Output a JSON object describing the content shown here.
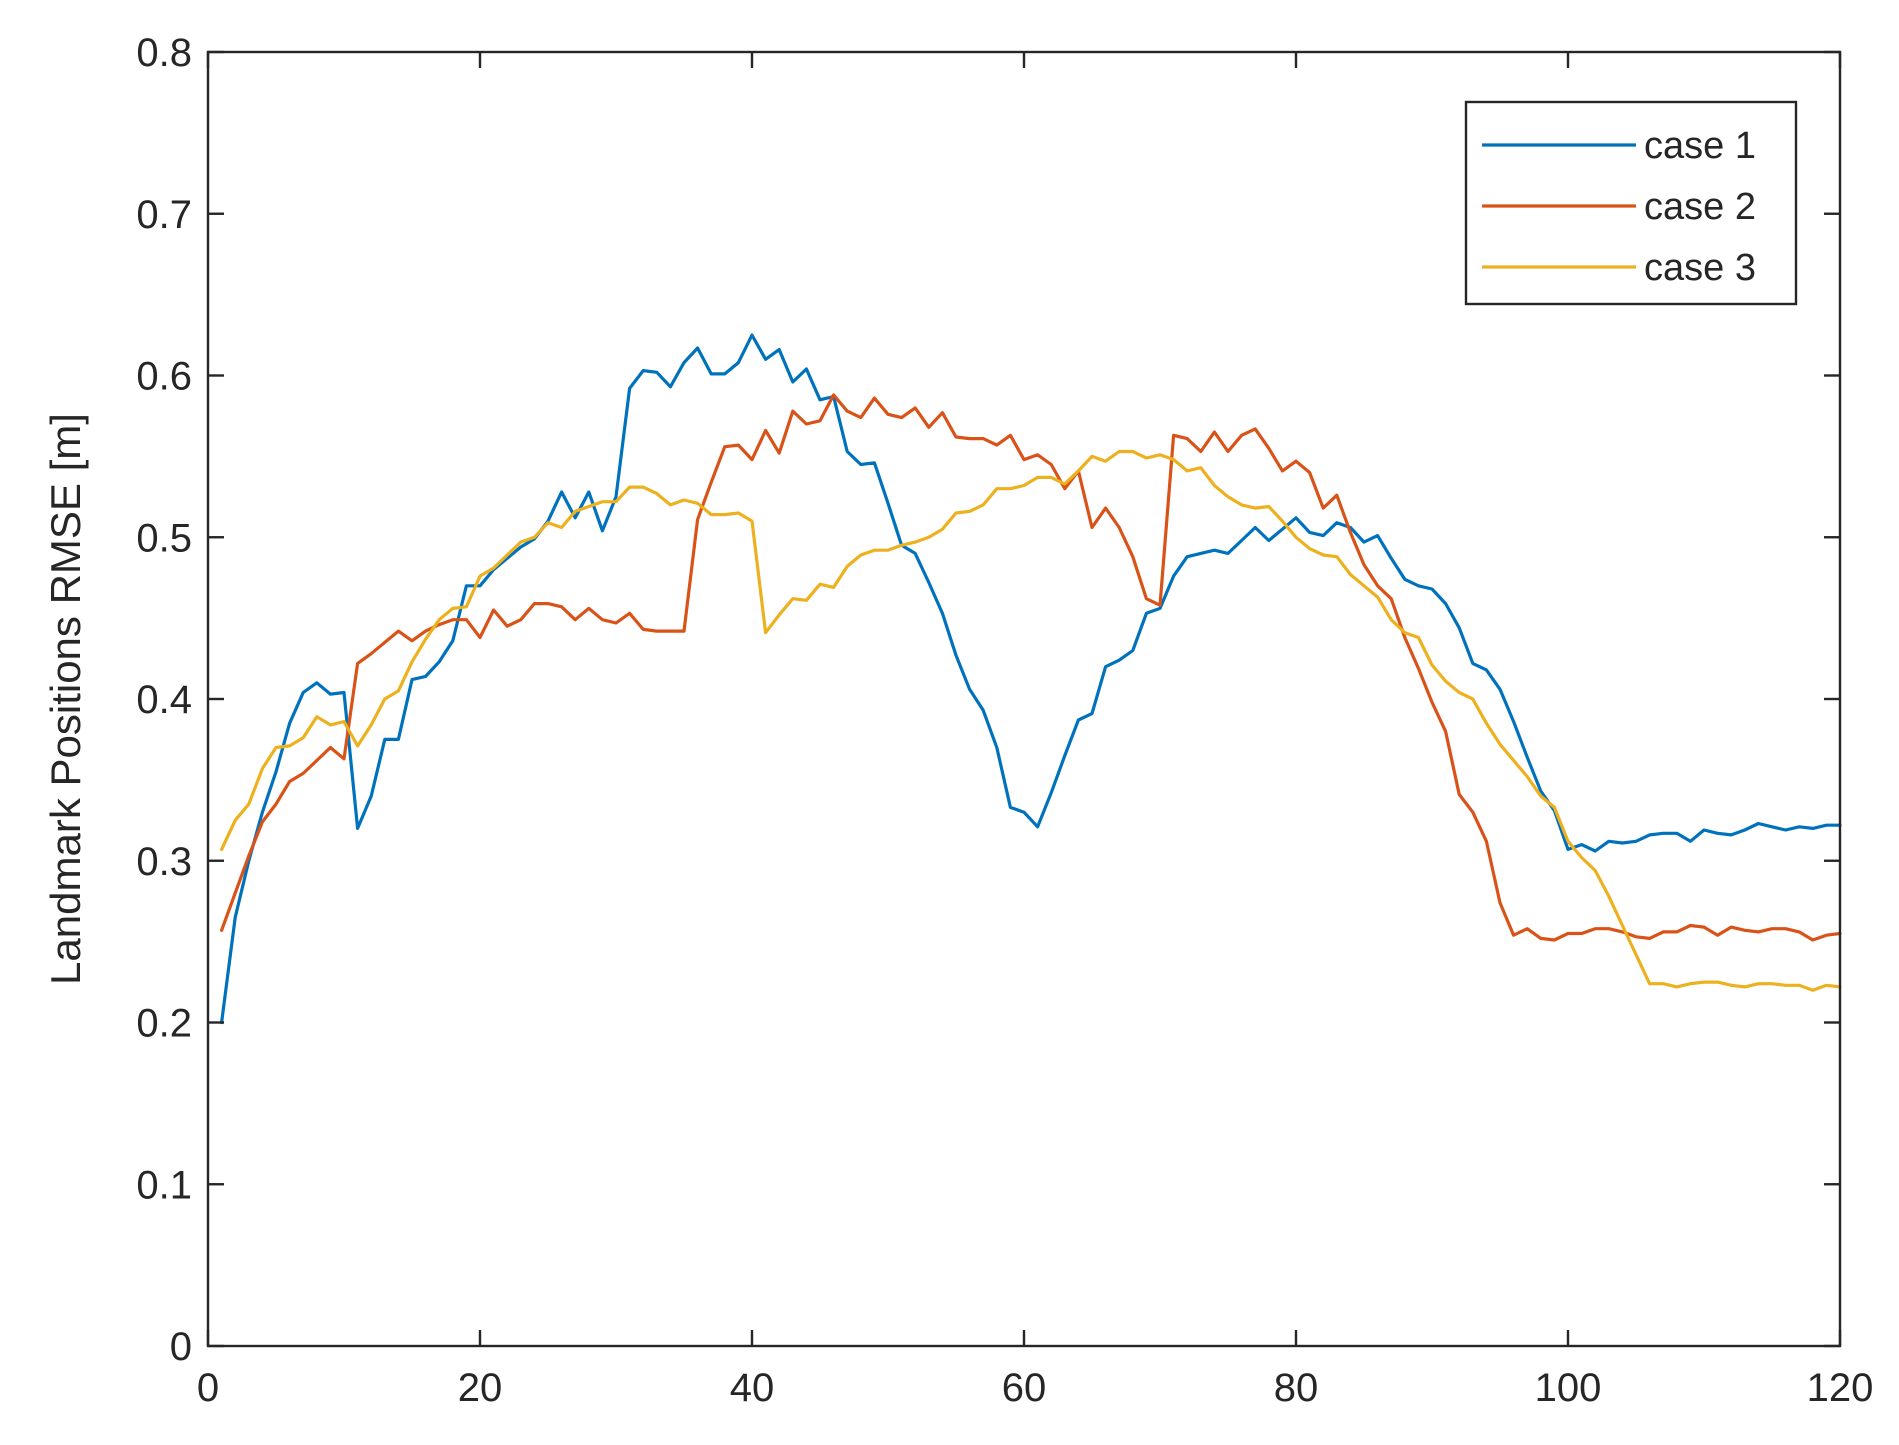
{
  "chart_data": {
    "type": "line",
    "title": "",
    "xlabel": "",
    "ylabel": "Landmark Positions RMSE [m]",
    "xlim": [
      0,
      120
    ],
    "ylim": [
      0,
      0.8
    ],
    "xticks": [
      "0",
      "20",
      "40",
      "60",
      "80",
      "100",
      "120"
    ],
    "yticks": [
      "0",
      "0.1",
      "0.2",
      "0.3",
      "0.4",
      "0.5",
      "0.6",
      "0.7",
      "0.8"
    ],
    "grid": false,
    "legend_position": "top-right",
    "colors": {
      "case 1": "#0072BD",
      "case 2": "#D95319",
      "case 3": "#EDB120",
      "axes": "#262626"
    },
    "x_start": 1,
    "series": [
      {
        "name": "case 1",
        "values": [
          0.2,
          0.265,
          0.3,
          0.33,
          0.355,
          0.385,
          0.404,
          0.41,
          0.403,
          0.404,
          0.32,
          0.34,
          0.375,
          0.375,
          0.412,
          0.414,
          0.423,
          0.436,
          0.47,
          0.47,
          0.48,
          0.487,
          0.494,
          0.499,
          0.51,
          0.528,
          0.512,
          0.528,
          0.504,
          0.525,
          0.592,
          0.603,
          0.602,
          0.593,
          0.608,
          0.617,
          0.601,
          0.601,
          0.608,
          0.625,
          0.61,
          0.616,
          0.596,
          0.604,
          0.585,
          0.587,
          0.553,
          0.545,
          0.546,
          0.521,
          0.495,
          0.49,
          0.472,
          0.453,
          0.427,
          0.406,
          0.393,
          0.37,
          0.333,
          0.33,
          0.321,
          0.342,
          0.365,
          0.387,
          0.391,
          0.42,
          0.424,
          0.43,
          0.453,
          0.456,
          0.476,
          0.488,
          0.49,
          0.492,
          0.49,
          0.498,
          0.506,
          0.498,
          0.505,
          0.512,
          0.503,
          0.501,
          0.509,
          0.506,
          0.497,
          0.501,
          0.487,
          0.474,
          0.47,
          0.468,
          0.459,
          0.444,
          0.422,
          0.418,
          0.406,
          0.386,
          0.364,
          0.343,
          0.331,
          0.307,
          0.31,
          0.306,
          0.312,
          0.311,
          0.312,
          0.316,
          0.317,
          0.317,
          0.312,
          0.319,
          0.317,
          0.316,
          0.319,
          0.323,
          0.321,
          0.319,
          0.321,
          0.32,
          0.322,
          0.322
        ]
      },
      {
        "name": "case 2",
        "values": [
          0.257,
          0.28,
          0.303,
          0.324,
          0.335,
          0.349,
          0.354,
          0.362,
          0.37,
          0.363,
          0.422,
          0.428,
          0.435,
          0.442,
          0.436,
          0.442,
          0.446,
          0.449,
          0.449,
          0.438,
          0.455,
          0.445,
          0.449,
          0.459,
          0.459,
          0.457,
          0.449,
          0.456,
          0.449,
          0.447,
          0.453,
          0.443,
          0.442,
          0.442,
          0.442,
          0.511,
          0.534,
          0.556,
          0.557,
          0.548,
          0.566,
          0.552,
          0.578,
          0.57,
          0.572,
          0.588,
          0.578,
          0.574,
          0.586,
          0.576,
          0.574,
          0.58,
          0.568,
          0.577,
          0.562,
          0.561,
          0.561,
          0.557,
          0.563,
          0.548,
          0.551,
          0.545,
          0.53,
          0.541,
          0.506,
          0.518,
          0.506,
          0.488,
          0.462,
          0.458,
          0.563,
          0.561,
          0.553,
          0.565,
          0.553,
          0.563,
          0.567,
          0.555,
          0.541,
          0.547,
          0.54,
          0.518,
          0.526,
          0.503,
          0.483,
          0.47,
          0.462,
          0.438,
          0.419,
          0.398,
          0.38,
          0.341,
          0.33,
          0.312,
          0.274,
          0.254,
          0.258,
          0.252,
          0.251,
          0.255,
          0.255,
          0.258,
          0.258,
          0.256,
          0.253,
          0.252,
          0.256,
          0.256,
          0.26,
          0.259,
          0.254,
          0.259,
          0.257,
          0.256,
          0.258,
          0.258,
          0.256,
          0.251,
          0.254,
          0.255
        ]
      },
      {
        "name": "case 3",
        "values": [
          0.307,
          0.325,
          0.335,
          0.357,
          0.37,
          0.371,
          0.376,
          0.389,
          0.384,
          0.386,
          0.371,
          0.384,
          0.4,
          0.405,
          0.423,
          0.437,
          0.449,
          0.456,
          0.457,
          0.476,
          0.481,
          0.489,
          0.497,
          0.5,
          0.509,
          0.506,
          0.516,
          0.519,
          0.522,
          0.522,
          0.531,
          0.531,
          0.527,
          0.52,
          0.523,
          0.521,
          0.514,
          0.514,
          0.515,
          0.51,
          0.441,
          0.452,
          0.462,
          0.461,
          0.471,
          0.469,
          0.482,
          0.489,
          0.492,
          0.492,
          0.495,
          0.497,
          0.5,
          0.505,
          0.515,
          0.516,
          0.52,
          0.53,
          0.53,
          0.532,
          0.537,
          0.537,
          0.533,
          0.541,
          0.55,
          0.547,
          0.553,
          0.553,
          0.549,
          0.551,
          0.548,
          0.541,
          0.543,
          0.532,
          0.525,
          0.52,
          0.518,
          0.519,
          0.51,
          0.5,
          0.493,
          0.489,
          0.488,
          0.477,
          0.47,
          0.463,
          0.449,
          0.441,
          0.438,
          0.421,
          0.411,
          0.404,
          0.4,
          0.385,
          0.372,
          0.362,
          0.352,
          0.34,
          0.333,
          0.312,
          0.302,
          0.294,
          0.278,
          0.26,
          0.242,
          0.224,
          0.224,
          0.222,
          0.224,
          0.225,
          0.225,
          0.223,
          0.222,
          0.224,
          0.224,
          0.223,
          0.223,
          0.22,
          0.223,
          0.222
        ]
      }
    ]
  }
}
